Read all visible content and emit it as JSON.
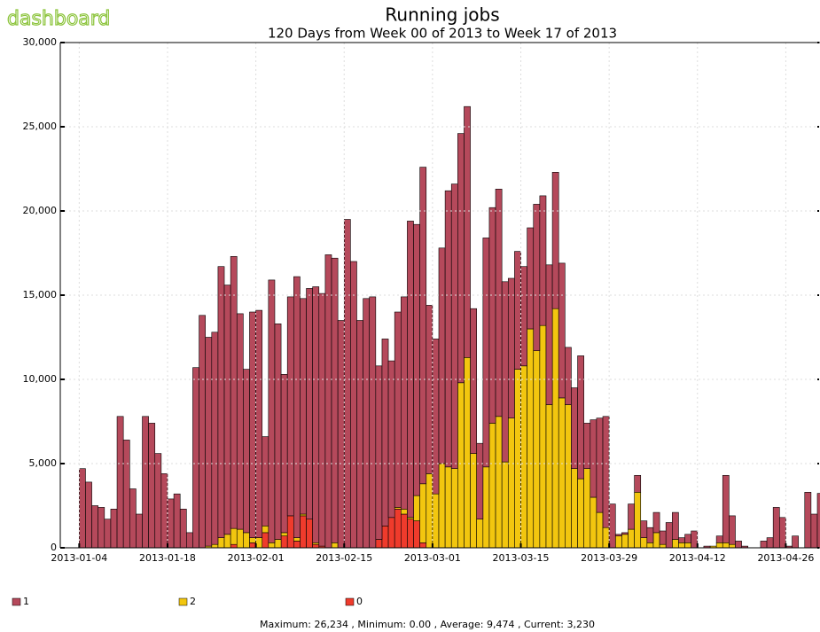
{
  "logo": "dashboard",
  "chart_data": {
    "type": "stacked_bar",
    "title": "Running jobs",
    "subtitle": "120 Days from Week 00 of 2013 to Week 17 of 2013",
    "xlim": [
      "2013-01-01",
      "2013-05-01"
    ],
    "xticks": [
      "2013-01-04",
      "2013-01-18",
      "2013-02-01",
      "2013-02-15",
      "2013-03-01",
      "2013-03-15",
      "2013-03-29",
      "2013-04-12",
      "2013-04-26"
    ],
    "ylim": [
      0,
      30000
    ],
    "yticks": [
      0,
      {
        "value": 5000,
        "label": "5,000"
      },
      {
        "value": 10000,
        "label": "10,000"
      },
      {
        "value": 15000,
        "label": "15,000"
      },
      {
        "value": 20000,
        "label": "20,000"
      },
      {
        "value": 25000,
        "label": "25,000"
      },
      {
        "value": 30000,
        "label": "30,000"
      }
    ],
    "grid": true,
    "legend": "bottom",
    "x": [
      "2013-01-04",
      "2013-01-05",
      "2013-01-06",
      "2013-01-07",
      "2013-01-08",
      "2013-01-09",
      "2013-01-10",
      "2013-01-11",
      "2013-01-12",
      "2013-01-13",
      "2013-01-14",
      "2013-01-15",
      "2013-01-16",
      "2013-01-17",
      "2013-01-18",
      "2013-01-19",
      "2013-01-20",
      "2013-01-21",
      "2013-01-22",
      "2013-01-23",
      "2013-01-24",
      "2013-01-25",
      "2013-01-26",
      "2013-01-27",
      "2013-01-28",
      "2013-01-29",
      "2013-01-30",
      "2013-01-31",
      "2013-02-01",
      "2013-02-02",
      "2013-02-03",
      "2013-02-04",
      "2013-02-05",
      "2013-02-06",
      "2013-02-07",
      "2013-02-08",
      "2013-02-09",
      "2013-02-10",
      "2013-02-11",
      "2013-02-12",
      "2013-02-13",
      "2013-02-14",
      "2013-02-15",
      "2013-02-16",
      "2013-02-17",
      "2013-02-18",
      "2013-02-19",
      "2013-02-20",
      "2013-02-21",
      "2013-02-22",
      "2013-02-23",
      "2013-02-24",
      "2013-02-25",
      "2013-02-26",
      "2013-02-27",
      "2013-02-28",
      "2013-03-01",
      "2013-03-02",
      "2013-03-03",
      "2013-03-04",
      "2013-03-05",
      "2013-03-06",
      "2013-03-07",
      "2013-03-08",
      "2013-03-09",
      "2013-03-10",
      "2013-03-11",
      "2013-03-12",
      "2013-03-13",
      "2013-03-14",
      "2013-03-15",
      "2013-03-16",
      "2013-03-17",
      "2013-03-18",
      "2013-03-19",
      "2013-03-20",
      "2013-03-21",
      "2013-03-22",
      "2013-03-23",
      "2013-03-24",
      "2013-03-25",
      "2013-03-26",
      "2013-03-27",
      "2013-03-28",
      "2013-03-29",
      "2013-03-30",
      "2013-03-31",
      "2013-04-01",
      "2013-04-02",
      "2013-04-03",
      "2013-04-04",
      "2013-04-05",
      "2013-04-06",
      "2013-04-07",
      "2013-04-08",
      "2013-04-09",
      "2013-04-10",
      "2013-04-11",
      "2013-04-12",
      "2013-04-13",
      "2013-04-14",
      "2013-04-15",
      "2013-04-16",
      "2013-04-17",
      "2013-04-18",
      "2013-04-19",
      "2013-04-20",
      "2013-04-21",
      "2013-04-22",
      "2013-04-23",
      "2013-04-24",
      "2013-04-25",
      "2013-04-26",
      "2013-04-27",
      "2013-04-28",
      "2013-04-29",
      "2013-04-30",
      "2013-05-01"
    ],
    "series": [
      {
        "name": "1",
        "color": "#b5495b",
        "values": [
          4700,
          3900,
          2500,
          2400,
          1700,
          2300,
          7800,
          6400,
          3500,
          2000,
          7800,
          7400,
          5600,
          4400,
          2900,
          3200,
          2300,
          900,
          10700,
          13800,
          12400,
          12600,
          16100,
          14800,
          16150,
          12800,
          9700,
          13400,
          13500,
          5300,
          15600,
          12800,
          9400,
          13000,
          15500,
          12800,
          13700,
          15200,
          15000,
          17400,
          16900,
          13500,
          19500,
          17000,
          13500,
          14800,
          14900,
          10300,
          11100,
          9300,
          11600,
          12600,
          17600,
          16100,
          18800,
          10000,
          9200,
          12800,
          16400,
          16900,
          14800,
          14900,
          8600,
          4500,
          13600,
          12800,
          13500,
          10700,
          8300,
          7000,
          5900,
          6000,
          8700,
          7700,
          8300,
          8100,
          8000,
          3400,
          4800,
          7300,
          2700,
          4600,
          5600,
          6600,
          2600,
          100,
          100,
          1500,
          1000,
          1000,
          900,
          1200,
          800,
          1500,
          1600,
          300,
          500,
          1000,
          0,
          100,
          0,
          400,
          4000,
          1700,
          400,
          100,
          0,
          0,
          400,
          600,
          2400,
          1800,
          100,
          700,
          0,
          3300,
          2000,
          3230
        ]
      },
      {
        "name": "2",
        "color": "#f2c60f",
        "values": [
          0,
          0,
          0,
          0,
          0,
          0,
          0,
          0,
          0,
          0,
          0,
          0,
          0,
          0,
          0,
          0,
          0,
          0,
          0,
          0,
          100,
          200,
          600,
          800,
          950,
          1100,
          900,
          300,
          600,
          400,
          300,
          500,
          200,
          0,
          200,
          100,
          0,
          100,
          0,
          0,
          300,
          0,
          0,
          0,
          0,
          0,
          0,
          0,
          0,
          0,
          100,
          300,
          100,
          1500,
          3500,
          4400,
          3200,
          5000,
          4800,
          4700,
          9800,
          11300,
          5600,
          1700,
          4800,
          7400,
          7800,
          5100,
          7700,
          10600,
          10800,
          13000,
          11700,
          13200,
          8500,
          14200,
          8900,
          8500,
          4700,
          4100,
          4700,
          3000,
          2100,
          1200,
          0,
          700,
          800,
          1100,
          3300,
          600,
          300,
          900,
          200,
          0,
          500,
          300,
          300,
          0,
          0,
          0,
          100,
          300,
          300,
          200,
          0,
          0,
          0,
          0,
          0,
          0,
          0,
          0,
          0,
          0,
          0,
          0,
          0,
          0
        ]
      },
      {
        "name": "0",
        "color": "#ef3b2c",
        "values": [
          0,
          0,
          0,
          0,
          0,
          0,
          0,
          0,
          0,
          0,
          0,
          0,
          0,
          0,
          0,
          0,
          0,
          0,
          0,
          0,
          0,
          0,
          0,
          0,
          200,
          0,
          0,
          300,
          0,
          900,
          0,
          0,
          700,
          1900,
          400,
          1900,
          1700,
          200,
          100,
          0,
          0,
          0,
          0,
          0,
          0,
          0,
          0,
          500,
          1300,
          1800,
          2300,
          2000,
          1700,
          1600,
          300,
          0,
          0,
          0,
          0,
          0,
          0,
          0,
          0,
          0,
          0,
          0,
          0,
          0,
          0,
          0,
          0,
          0,
          0,
          0,
          0,
          0,
          0,
          0,
          0,
          0,
          0,
          0,
          0,
          0,
          0,
          0,
          0,
          0,
          0,
          0,
          0,
          0,
          0,
          0,
          0,
          0,
          0,
          0,
          0,
          0,
          0,
          0,
          0,
          0,
          0,
          0,
          0,
          0,
          0,
          0,
          0,
          0,
          0,
          0,
          0,
          0,
          0,
          0
        ]
      }
    ],
    "stats": "Maximum: 26,234 , Minimum: 0.00 , Average: 9,474 , Current: 3,230"
  }
}
